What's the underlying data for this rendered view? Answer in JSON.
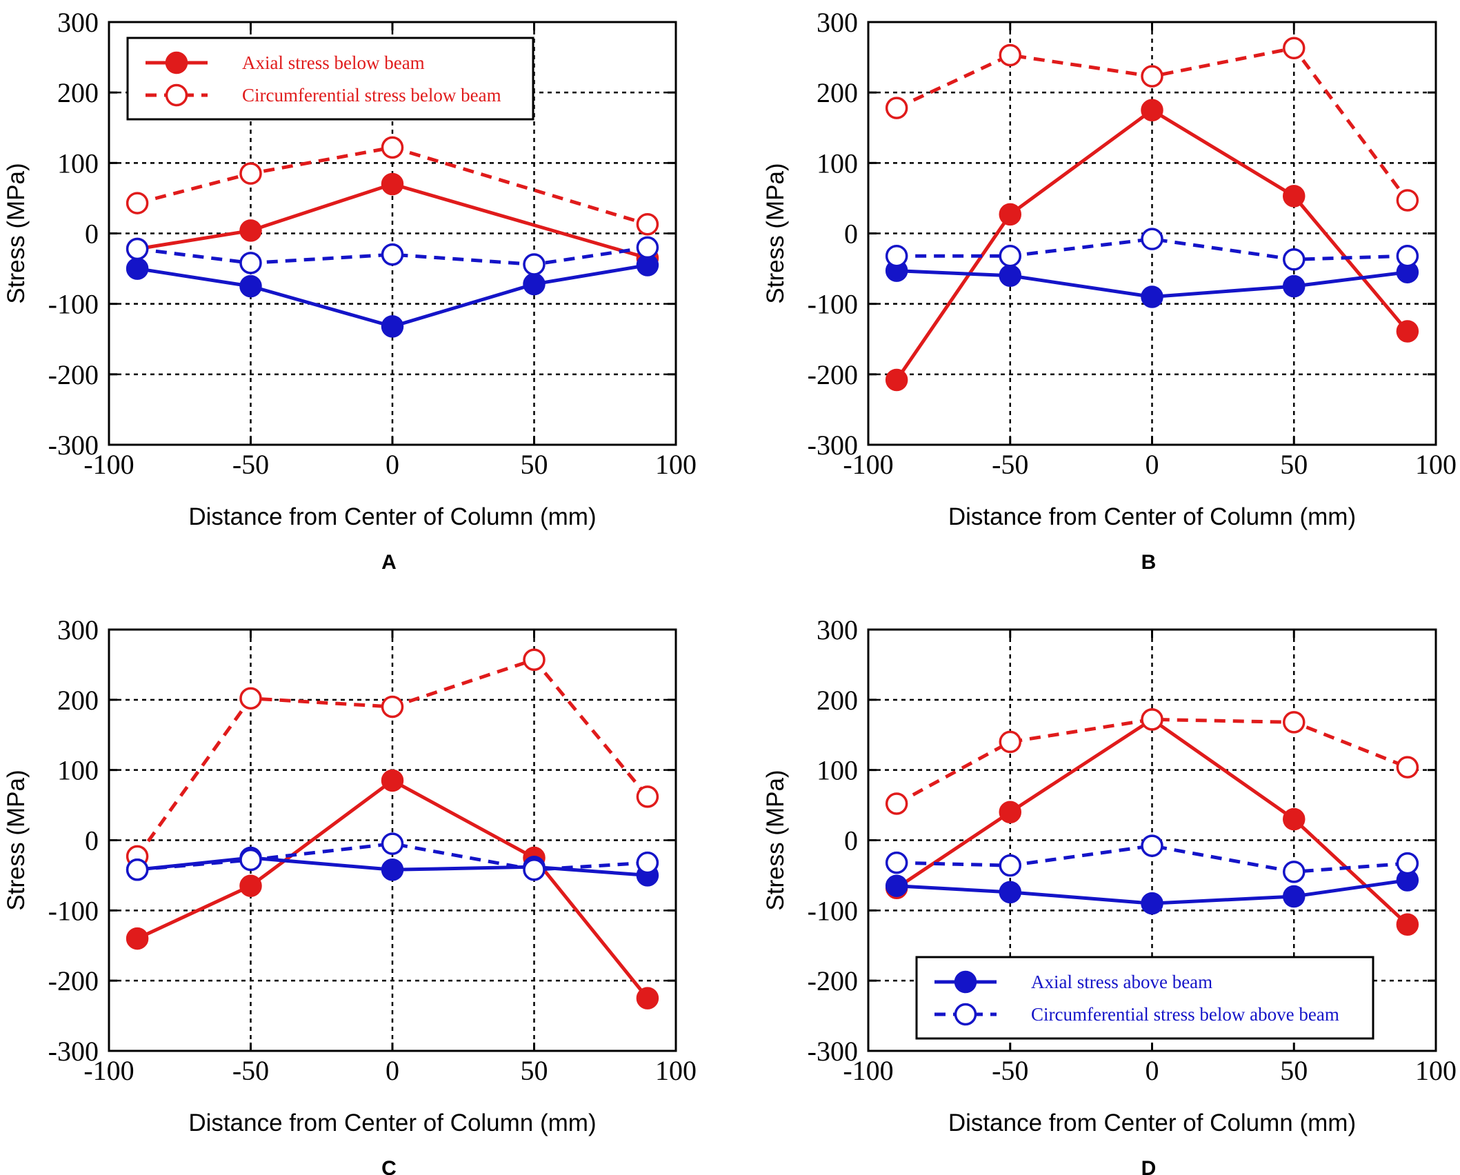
{
  "colors": {
    "red": "#e01b1b",
    "blue": "#1414c8",
    "grid": "#000000",
    "frame": "#000000"
  },
  "chart_data": [
    {
      "type": "line",
      "panel_label": "A",
      "xlabel": "Distance from Center of Column (mm)",
      "ylabel": "Stress (MPa)",
      "xlim": [
        -100,
        100
      ],
      "ylim": [
        -300,
        300
      ],
      "xticks": [
        "-100",
        "-50",
        "0",
        "50",
        "100"
      ],
      "yticks": [
        "300",
        "200",
        "100",
        "0",
        "-100",
        "-200",
        "-300"
      ],
      "grid": true,
      "legend_position": "top-left",
      "legend_entries": [
        "Axial stress below beam",
        "Circumferential stress below beam"
      ],
      "series": [
        {
          "name": "Axial stress below beam",
          "color": "#e01b1b",
          "style": "solid",
          "marker": "filled",
          "x": [
            -90,
            -50,
            0,
            90
          ],
          "y": [
            -22,
            4,
            70,
            -35
          ]
        },
        {
          "name": "Circumferential stress below beam",
          "color": "#e01b1b",
          "style": "dashed",
          "marker": "open",
          "x": [
            -90,
            -50,
            0,
            90
          ],
          "y": [
            43,
            85,
            122,
            13
          ]
        },
        {
          "color": "#1414c8",
          "style": "solid",
          "marker": "filled",
          "x": [
            -90,
            -50,
            0,
            50,
            90
          ],
          "y": [
            -50,
            -75,
            -132,
            -72,
            -45
          ]
        },
        {
          "color": "#1414c8",
          "style": "dashed",
          "marker": "open",
          "x": [
            -90,
            -50,
            0,
            50,
            90
          ],
          "y": [
            -22,
            -42,
            -30,
            -44,
            -20
          ]
        }
      ]
    },
    {
      "type": "line",
      "panel_label": "B",
      "xlabel": "Distance from Center of Column (mm)",
      "ylabel": "Stress (MPa)",
      "xlim": [
        -100,
        100
      ],
      "ylim": [
        -300,
        300
      ],
      "xticks": [
        "-100",
        "-50",
        "0",
        "50",
        "100"
      ],
      "yticks": [
        "300",
        "200",
        "100",
        "0",
        "-100",
        "-200",
        "-300"
      ],
      "grid": true,
      "legend_entries": [],
      "series": [
        {
          "color": "#e01b1b",
          "style": "solid",
          "marker": "filled",
          "x": [
            -90,
            -50,
            0,
            50,
            90
          ],
          "y": [
            -208,
            27,
            175,
            53,
            -139
          ]
        },
        {
          "color": "#e01b1b",
          "style": "dashed",
          "marker": "open",
          "x": [
            -90,
            -50,
            0,
            50,
            90
          ],
          "y": [
            178,
            253,
            223,
            263,
            47
          ]
        },
        {
          "color": "#1414c8",
          "style": "solid",
          "marker": "filled",
          "x": [
            -90,
            -50,
            0,
            50,
            90
          ],
          "y": [
            -53,
            -60,
            -90,
            -75,
            -55
          ]
        },
        {
          "color": "#1414c8",
          "style": "dashed",
          "marker": "open",
          "x": [
            -90,
            -50,
            0,
            50,
            90
          ],
          "y": [
            -32,
            -32,
            -8,
            -37,
            -32
          ]
        }
      ]
    },
    {
      "type": "line",
      "panel_label": "C",
      "xlabel": "Distance from Center of Column (mm)",
      "ylabel": "Stress (MPa)",
      "xlim": [
        -100,
        100
      ],
      "ylim": [
        -300,
        300
      ],
      "xticks": [
        "-100",
        "-50",
        "0",
        "50",
        "100"
      ],
      "yticks": [
        "300",
        "200",
        "100",
        "0",
        "-100",
        "-200",
        "-300"
      ],
      "grid": true,
      "legend_entries": [],
      "series": [
        {
          "color": "#e01b1b",
          "style": "solid",
          "marker": "filled",
          "x": [
            -90,
            -50,
            0,
            50,
            90
          ],
          "y": [
            -140,
            -65,
            85,
            -25,
            -225
          ]
        },
        {
          "color": "#e01b1b",
          "style": "dashed",
          "marker": "open",
          "x": [
            -90,
            -50,
            0,
            50,
            90
          ],
          "y": [
            -23,
            202,
            190,
            257,
            62
          ]
        },
        {
          "color": "#1414c8",
          "style": "solid",
          "marker": "filled",
          "x": [
            -90,
            -50,
            0,
            50,
            90
          ],
          "y": [
            -42,
            -25,
            -42,
            -38,
            -50
          ]
        },
        {
          "color": "#1414c8",
          "style": "dashed",
          "marker": "open",
          "x": [
            -90,
            -50,
            0,
            50,
            90
          ],
          "y": [
            -42,
            -28,
            -5,
            -42,
            -32
          ]
        }
      ]
    },
    {
      "type": "line",
      "panel_label": "D",
      "xlabel": "Distance from Center of Column (mm)",
      "ylabel": "Stress (MPa)",
      "xlim": [
        -100,
        100
      ],
      "ylim": [
        -300,
        300
      ],
      "xticks": [
        "-100",
        "-50",
        "0",
        "50",
        "100"
      ],
      "yticks": [
        "300",
        "200",
        "100",
        "0",
        "-100",
        "-200",
        "-300"
      ],
      "grid": true,
      "legend_position": "bottom-right",
      "legend_entries": [
        "Axial stress above beam",
        "Circumferential stress below above beam"
      ],
      "series": [
        {
          "color": "#e01b1b",
          "style": "solid",
          "marker": "filled",
          "x": [
            -90,
            -50,
            0,
            50,
            90
          ],
          "y": [
            -68,
            40,
            172,
            30,
            -120
          ]
        },
        {
          "color": "#e01b1b",
          "style": "dashed",
          "marker": "open",
          "x": [
            -90,
            -50,
            0,
            50,
            90
          ],
          "y": [
            52,
            140,
            172,
            168,
            104
          ]
        },
        {
          "name": "Axial stress above beam",
          "color": "#1414c8",
          "style": "solid",
          "marker": "filled",
          "x": [
            -90,
            -50,
            0,
            50,
            90
          ],
          "y": [
            -65,
            -74,
            -90,
            -80,
            -57
          ]
        },
        {
          "name": "Circumferential stress below above beam",
          "color": "#1414c8",
          "style": "dashed",
          "marker": "open",
          "x": [
            -90,
            -50,
            0,
            50,
            90
          ],
          "y": [
            -32,
            -36,
            -8,
            -45,
            -33
          ]
        }
      ]
    }
  ]
}
